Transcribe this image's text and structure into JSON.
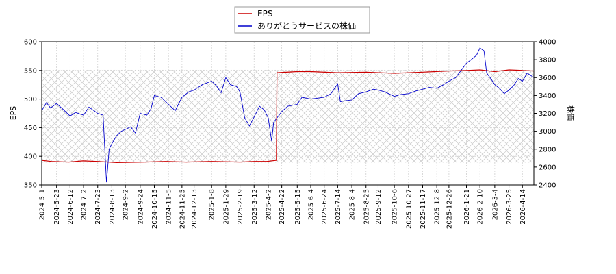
{
  "chart_data": {
    "type": "line",
    "title": "",
    "xlabel": "",
    "ylabel_left": "EPS",
    "ylabel_right": "株価",
    "ylim_left": [
      350,
      600
    ],
    "ylim_right": [
      2400,
      4000
    ],
    "yticks_left": [
      350,
      400,
      450,
      500,
      550,
      600
    ],
    "yticks_right": [
      2400,
      2600,
      2800,
      3000,
      3200,
      3400,
      3600,
      3800,
      4000
    ],
    "x_range": [
      "2024-5-1",
      "2026-5-1"
    ],
    "xtick_labels": [
      "2024-5-1",
      "2024-5-23",
      "2024-6-12",
      "2024-7-2",
      "2024-7-23",
      "2024-8-13",
      "2024-9-2",
      "2024-9-24",
      "2024-10-15",
      "2024-11-5",
      "2024-11-25",
      "2024-12-13",
      "2025-1-8",
      "2025-1-29",
      "2025-2-19",
      "2025-3-12",
      "2025-4-2",
      "2025-4-22",
      "2025-5-15",
      "2025-6-4",
      "2025-6-24",
      "2025-7-14",
      "2025-8-4",
      "2025-8-25",
      "2025-9-12",
      "2025-10-6",
      "2025-10-27",
      "2025-11-17",
      "2025-12-8",
      "2025-12-26",
      "2026-1-21",
      "2026-2-10",
      "2026-3-4",
      "2026-3-25",
      "2026-4-14"
    ],
    "grid": true,
    "legend_position": "top-center",
    "colors": {
      "eps": "#cc0000",
      "price": "#0000cc"
    },
    "series": [
      {
        "name": "EPS",
        "axis": "left",
        "points": [
          [
            "2024-5-1",
            393
          ],
          [
            "2024-5-15",
            391
          ],
          [
            "2024-6-10",
            390
          ],
          [
            "2024-7-1",
            392
          ],
          [
            "2024-7-23",
            391
          ],
          [
            "2024-8-20",
            389
          ],
          [
            "2024-10-1",
            390
          ],
          [
            "2024-11-1",
            391
          ],
          [
            "2024-12-1",
            390
          ],
          [
            "2025-1-8",
            391
          ],
          [
            "2025-2-19",
            390
          ],
          [
            "2025-3-12",
            391
          ],
          [
            "2025-3-31",
            391
          ],
          [
            "2025-4-14",
            393
          ],
          [
            "2025-4-15",
            546
          ],
          [
            "2025-5-15",
            548
          ],
          [
            "2025-6-4",
            548
          ],
          [
            "2025-7-14",
            546
          ],
          [
            "2025-8-25",
            547
          ],
          [
            "2025-10-6",
            545
          ],
          [
            "2025-11-17",
            547
          ],
          [
            "2025-12-26",
            549
          ],
          [
            "2026-1-21",
            550
          ],
          [
            "2026-2-10",
            551
          ],
          [
            "2026-3-4",
            548
          ],
          [
            "2026-3-25",
            551
          ],
          [
            "2026-4-14",
            550
          ],
          [
            "2026-5-1",
            549
          ]
        ]
      },
      {
        "name": "ありがとうサービスの株価",
        "axis": "right",
        "points": [
          [
            "2024-5-1",
            3230
          ],
          [
            "2024-5-8",
            3320
          ],
          [
            "2024-5-14",
            3260
          ],
          [
            "2024-5-23",
            3310
          ],
          [
            "2024-6-1",
            3250
          ],
          [
            "2024-6-12",
            3170
          ],
          [
            "2024-6-20",
            3210
          ],
          [
            "2024-7-2",
            3180
          ],
          [
            "2024-7-10",
            3270
          ],
          [
            "2024-7-23",
            3200
          ],
          [
            "2024-7-31",
            3180
          ],
          [
            "2024-8-5",
            2430
          ],
          [
            "2024-8-9",
            2800
          ],
          [
            "2024-8-13",
            2860
          ],
          [
            "2024-8-20",
            2950
          ],
          [
            "2024-8-27",
            3000
          ],
          [
            "2024-9-2",
            3020
          ],
          [
            "2024-9-10",
            3050
          ],
          [
            "2024-9-17",
            2980
          ],
          [
            "2024-9-24",
            3200
          ],
          [
            "2024-10-4",
            3180
          ],
          [
            "2024-10-10",
            3250
          ],
          [
            "2024-10-15",
            3400
          ],
          [
            "2024-10-25",
            3380
          ],
          [
            "2024-11-5",
            3300
          ],
          [
            "2024-11-15",
            3230
          ],
          [
            "2024-11-25",
            3380
          ],
          [
            "2024-12-5",
            3440
          ],
          [
            "2024-12-13",
            3460
          ],
          [
            "2024-12-25",
            3520
          ],
          [
            "2025-1-8",
            3560
          ],
          [
            "2025-1-15",
            3510
          ],
          [
            "2025-1-22",
            3430
          ],
          [
            "2025-1-29",
            3600
          ],
          [
            "2025-2-5",
            3520
          ],
          [
            "2025-2-14",
            3500
          ],
          [
            "2025-2-19",
            3440
          ],
          [
            "2025-2-26",
            3150
          ],
          [
            "2025-3-5",
            3060
          ],
          [
            "2025-3-12",
            3160
          ],
          [
            "2025-3-20",
            3280
          ],
          [
            "2025-3-27",
            3240
          ],
          [
            "2025-4-2",
            3150
          ],
          [
            "2025-4-7",
            2890
          ],
          [
            "2025-4-10",
            3100
          ],
          [
            "2025-4-22",
            3220
          ],
          [
            "2025-5-1",
            3280
          ],
          [
            "2025-5-15",
            3300
          ],
          [
            "2025-5-22",
            3380
          ],
          [
            "2025-6-4",
            3360
          ],
          [
            "2025-6-14",
            3370
          ],
          [
            "2025-6-24",
            3380
          ],
          [
            "2025-7-4",
            3420
          ],
          [
            "2025-7-14",
            3530
          ],
          [
            "2025-7-18",
            3330
          ],
          [
            "2025-7-25",
            3340
          ],
          [
            "2025-8-4",
            3350
          ],
          [
            "2025-8-14",
            3420
          ],
          [
            "2025-8-25",
            3440
          ],
          [
            "2025-9-5",
            3470
          ],
          [
            "2025-9-12",
            3460
          ],
          [
            "2025-9-22",
            3440
          ],
          [
            "2025-10-6",
            3390
          ],
          [
            "2025-10-15",
            3410
          ],
          [
            "2025-10-27",
            3420
          ],
          [
            "2025-11-7",
            3450
          ],
          [
            "2025-11-17",
            3470
          ],
          [
            "2025-11-27",
            3490
          ],
          [
            "2025-12-8",
            3480
          ],
          [
            "2025-12-18",
            3520
          ],
          [
            "2025-12-26",
            3560
          ],
          [
            "2026-1-5",
            3600
          ],
          [
            "2026-1-15",
            3700
          ],
          [
            "2026-1-21",
            3760
          ],
          [
            "2026-1-28",
            3800
          ],
          [
            "2026-2-5",
            3850
          ],
          [
            "2026-2-10",
            3930
          ],
          [
            "2026-2-16",
            3900
          ],
          [
            "2026-2-20",
            3650
          ],
          [
            "2026-2-27",
            3580
          ],
          [
            "2026-3-4",
            3520
          ],
          [
            "2026-3-11",
            3480
          ],
          [
            "2026-3-18",
            3420
          ],
          [
            "2026-3-25",
            3460
          ],
          [
            "2026-4-1",
            3510
          ],
          [
            "2026-4-8",
            3590
          ],
          [
            "2026-4-14",
            3560
          ],
          [
            "2026-4-21",
            3650
          ],
          [
            "2026-5-1",
            3600
          ]
        ]
      }
    ]
  }
}
